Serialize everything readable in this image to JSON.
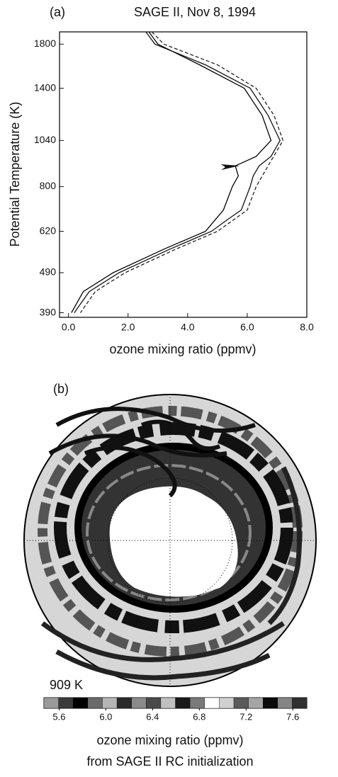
{
  "chart_data": [
    {
      "type": "line",
      "label": "(a)",
      "title": "SAGE II, Nov 8, 1994",
      "xlabel": "ozone mixing ratio (ppmv)",
      "ylabel": "Potential Temperature (K)",
      "xlim": [
        -0.3,
        8.0
      ],
      "ylim": [
        380,
        1930
      ],
      "log_y": true,
      "xticks": [
        {
          "value": 0,
          "label": "0.0"
        },
        {
          "value": 2,
          "label": "2.0"
        },
        {
          "value": 4,
          "label": "4.0"
        },
        {
          "value": 6,
          "label": "6.0"
        },
        {
          "value": 8,
          "label": "8.0"
        }
      ],
      "yticks": [
        390,
        490,
        620,
        800,
        1040,
        1400,
        1800
      ],
      "series": [
        {
          "color": "#111111",
          "dash": false,
          "x": [
            2.6,
            2.9,
            4.6,
            6.1,
            6.7,
            7.1,
            6.8,
            6.4,
            6.2,
            6.1,
            5.8,
            5.3,
            4.8,
            3.4,
            1.7,
            0.7,
            0.3,
            0.2
          ],
          "values": [
            1930,
            1800,
            1600,
            1400,
            1200,
            1040,
            950,
            900,
            850,
            800,
            700,
            660,
            620,
            560,
            490,
            440,
            400,
            390
          ]
        },
        {
          "color": "#222222",
          "dash": true,
          "x": [
            2.8,
            3.2,
            5.0,
            6.3,
            6.9,
            7.2,
            6.7,
            6.3,
            6.0,
            5.0,
            3.6,
            1.9,
            0.9,
            0.4
          ],
          "values": [
            1930,
            1800,
            1600,
            1400,
            1200,
            1040,
            900,
            800,
            700,
            620,
            560,
            490,
            440,
            390
          ]
        },
        {
          "color": "#000000",
          "dash": false,
          "x": [
            2.7,
            3.0,
            4.4,
            5.9,
            6.5,
            6.8,
            6.3,
            5.6,
            5.7,
            5.5,
            5.2,
            4.6,
            3.2,
            1.5,
            0.5,
            0.1
          ],
          "values": [
            1930,
            1800,
            1600,
            1400,
            1200,
            1040,
            950,
            900,
            850,
            800,
            700,
            620,
            560,
            490,
            440,
            390
          ]
        }
      ]
    },
    {
      "type": "map",
      "label": "(b)",
      "level": "909 K",
      "xlabel": "ozone mixing ratio (ppmv)",
      "subtitle": "from SAGE II RC initialization",
      "colorbar_lim": [
        5.47,
        7.72
      ],
      "colorbar_ticks": [
        5.6,
        {
          "value": 6.0,
          "label": "6.0"
        },
        6.4,
        6.8,
        7.2,
        7.6
      ],
      "colorbar_colors": [
        "#9a9a9a",
        "#3a3a3a",
        "#000000",
        "#6a6a6a",
        "#b5b5b5",
        "#2a2a2a",
        "#8a8a8a",
        "#4a4a4a",
        "#c0c0c0",
        "#1a1a1a",
        "#7a7a7a",
        "#ffffff",
        "#d0d0d0",
        "#5a5a5a",
        "#a5a5a5",
        "#0a0a0a",
        "#858585",
        "#303030"
      ]
    }
  ]
}
